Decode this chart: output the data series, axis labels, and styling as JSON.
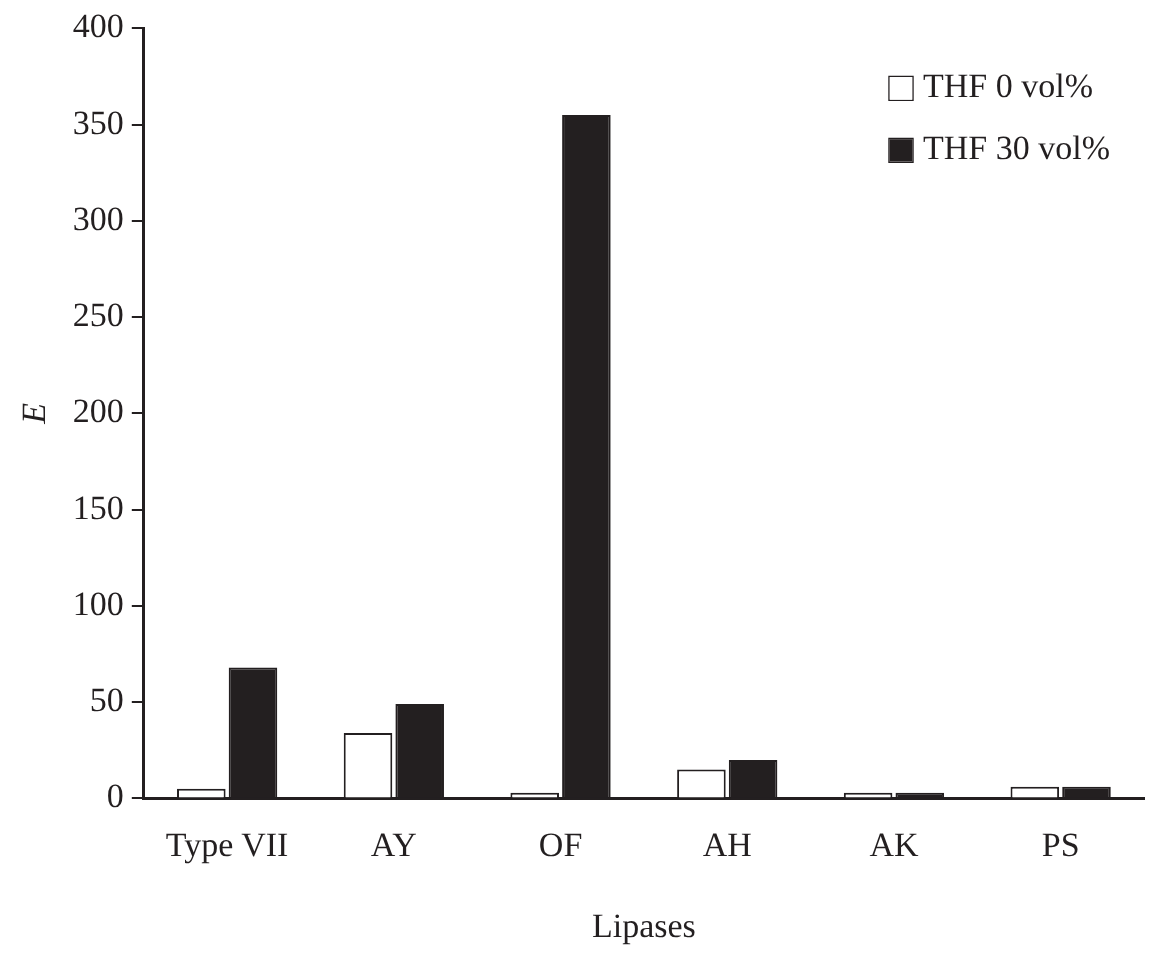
{
  "chart_data": {
    "type": "bar",
    "xlabel": "Lipases",
    "ylabel": "E",
    "categories": [
      "Type VII",
      "AY",
      "OF",
      "AH",
      "AK",
      "PS"
    ],
    "series": [
      {
        "name": "THF 0 vol%",
        "color": "#ffffff",
        "values": [
          5,
          34,
          3,
          15,
          3,
          6
        ]
      },
      {
        "name": "THF 30 vol%",
        "color": "#231f20",
        "values": [
          68,
          49,
          355,
          20,
          3,
          6
        ]
      }
    ],
    "ylim": [
      0,
      400
    ],
    "yticks": [
      0,
      50,
      100,
      150,
      200,
      250,
      300,
      350,
      400
    ],
    "grid": false,
    "legend": "top right"
  }
}
